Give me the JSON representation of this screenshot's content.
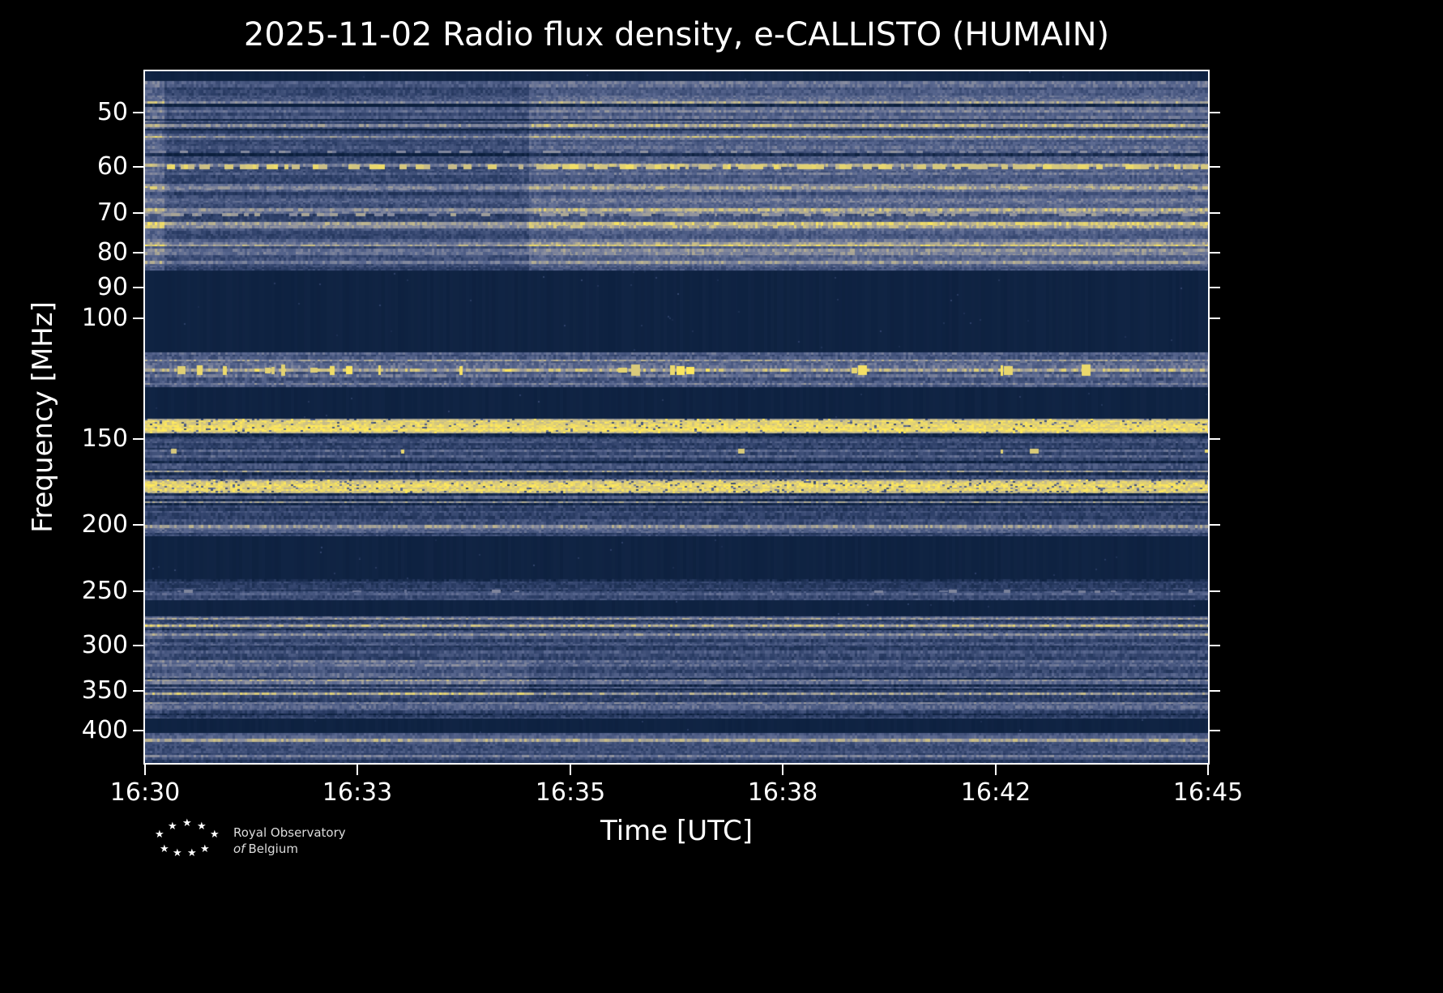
{
  "title": "2025-11-02 Radio flux density, e-CALLISTO (HUMAIN)",
  "axes": {
    "xlabel": "Time [UTC]",
    "ylabel": "Frequency [MHz]",
    "x_tick_labels": [
      "16:30",
      "16:33",
      "16:35",
      "16:38",
      "16:42",
      "16:45"
    ],
    "y_tick_labels": [
      "50",
      "60",
      "70",
      "80",
      "90",
      "100",
      "150",
      "200",
      "250",
      "300",
      "350",
      "400"
    ]
  },
  "footer": {
    "logo_icon": "rob-star-logo",
    "org_line1": "Royal Observatory",
    "org_line2_italic": "of",
    "org_line2_rest": "Belgium"
  },
  "chart_data": {
    "type": "heatmap",
    "title": "2025-11-02 Radio flux density, e-CALLISTO (HUMAIN)",
    "date": "2025-11-02",
    "instrument": "e-CALLISTO",
    "station": "HUMAIN",
    "xlabel": "Time [UTC]",
    "ylabel": "Frequency [MHz]",
    "x_start_utc": "16:30",
    "x_end_utc": "16:45",
    "x_span_minutes": 15,
    "x_ticks": [
      "16:30",
      "16:33",
      "16:35",
      "16:38",
      "16:42",
      "16:45"
    ],
    "y_ticks_mhz": [
      50,
      60,
      70,
      80,
      90,
      100,
      150,
      200,
      250,
      300,
      350,
      400
    ],
    "freq_min_mhz": 43.5,
    "freq_max_mhz": 446,
    "y_scale": "log-inverted",
    "background": "#000000",
    "colormap_stops": [
      [
        0,
        "#0b1f3d"
      ],
      [
        0.3,
        "#2e4069"
      ],
      [
        0.55,
        "#5a6890"
      ],
      [
        0.72,
        "#8b8fa0"
      ],
      [
        0.85,
        "#c2b88d"
      ],
      [
        1,
        "#ffe95c"
      ]
    ],
    "bands": [
      {
        "kind": "dark",
        "f0": 43.5,
        "f1": 45.0,
        "label": "top edge quiet strip"
      },
      {
        "kind": "noise",
        "f0": 45.0,
        "f1": 85,
        "base": 0.46,
        "rowVar": 0.12,
        "jitter": 0.22,
        "darkRowP": 0.1,
        "tanRowP": 0.18,
        "regions": [
          {
            "x0": 0,
            "x1": 0.018,
            "dv": 0.07
          },
          {
            "x0": 0.018,
            "x1": 0.36,
            "dv": -0.09
          },
          {
            "x0": 0.36,
            "x1": 1.01,
            "dv": 0.04
          }
        ],
        "label": "45-85 MHz broadband noise, darker before ~16:35, brighter after"
      },
      {
        "kind": "dark",
        "f0": 85,
        "f1": 112,
        "label": "85-112 MHz quiet band"
      },
      {
        "kind": "noise",
        "f0": 112,
        "f1": 126,
        "base": 0.5,
        "rowVar": 0.14,
        "jitter": 0.26,
        "darkRowP": 0.06,
        "tanRowP": 0.2,
        "label": "112-126 MHz band with bright yellow bursts"
      },
      {
        "kind": "dark",
        "f0": 126,
        "f1": 140,
        "label": "126-140 MHz quiet band"
      },
      {
        "kind": "bright",
        "f0": 140,
        "f1": 147,
        "base": 0.95,
        "jitter": 0.12,
        "gapP": 0.05,
        "label": "~145 MHz continuous bright RFI line"
      },
      {
        "kind": "noise",
        "f0": 147,
        "f1": 172,
        "base": 0.4,
        "rowVar": 0.16,
        "jitter": 0.24,
        "darkRowP": 0.15,
        "tanRowP": 0.12,
        "label": "147-172 MHz noise rows with sparse bright dots"
      },
      {
        "kind": "bright",
        "f0": 172,
        "f1": 180,
        "base": 0.93,
        "jitter": 0.14,
        "gapP": 0.08,
        "label": "~175 MHz continuous bright RFI line"
      },
      {
        "kind": "noise",
        "f0": 180,
        "f1": 208,
        "base": 0.38,
        "rowVar": 0.18,
        "jitter": 0.24,
        "darkRowP": 0.2,
        "tanRowP": 0.08,
        "label": "180-208 MHz mixed noise rows"
      },
      {
        "kind": "dark",
        "f0": 208,
        "f1": 240,
        "label": "208-240 MHz quiet band"
      },
      {
        "kind": "noise",
        "f0": 240,
        "f1": 258,
        "base": 0.36,
        "rowVar": 0.16,
        "jitter": 0.22,
        "darkRowP": 0.2,
        "tanRowP": 0.06,
        "label": "~250 MHz gray noise rows"
      },
      {
        "kind": "dark",
        "f0": 258,
        "f1": 272,
        "label": "258-272 MHz quiet band"
      },
      {
        "kind": "noise",
        "f0": 272,
        "f1": 384,
        "base": 0.41,
        "rowVar": 0.16,
        "jitter": 0.24,
        "darkRowP": 0.16,
        "tanRowP": 0.1,
        "regions": [
          {
            "x0": 0,
            "x1": 0.015,
            "dv": 0.07
          },
          {
            "x0": 0.015,
            "x1": 0.36,
            "dv": 0.09,
            "fr0": 316,
            "fr1": 360
          }
        ],
        "label": "272-384 MHz noise, lighter 320-355 MHz block before ~16:35"
      },
      {
        "kind": "dark",
        "f0": 384,
        "f1": 403,
        "label": "384-403 MHz quiet band"
      },
      {
        "kind": "noise",
        "f0": 403,
        "f1": 419,
        "base": 0.48,
        "rowVar": 0.12,
        "jitter": 0.2,
        "darkRowP": 0.05,
        "tanRowP": 0.15,
        "label": "~410 MHz gray noise row"
      },
      {
        "kind": "noise",
        "f0": 419,
        "f1": 446,
        "base": 0.3,
        "rowVar": 0.14,
        "jitter": 0.22,
        "darkRowP": 0.25,
        "tanRowP": 0.03,
        "label": "bottom dim speckled noise"
      }
    ],
    "features": [
      {
        "kind": "dashline",
        "f": 60,
        "h": 6,
        "p": 0.62,
        "v": 0.97,
        "label": "60 MHz intermittent bright yellow line"
      },
      {
        "kind": "dashline",
        "f": 57,
        "h": 3,
        "p": 0.3,
        "v": 0.74,
        "label": "faint line"
      },
      {
        "kind": "dashline",
        "f": 64.5,
        "h": 3,
        "p": 0.3,
        "v": 0.75,
        "label": "faint line"
      },
      {
        "kind": "dashline",
        "f": 70.5,
        "h": 4,
        "p": 0.4,
        "v": 0.8,
        "label": "faint line"
      },
      {
        "kind": "dashline",
        "f": 73.5,
        "h": 3,
        "p": 0.35,
        "v": 0.78,
        "label": "faint line"
      },
      {
        "kind": "dashline",
        "f": 80,
        "h": 3,
        "p": 0.28,
        "v": 0.72,
        "label": "faint line"
      },
      {
        "kind": "specks",
        "f": 119,
        "h": 14,
        "p": 0.1,
        "v": 1.0,
        "label": "112-126 MHz bright bursts"
      },
      {
        "kind": "specks",
        "f": 156,
        "h": 6,
        "p": 0.012,
        "v": 0.95,
        "label": "sparse bright dots"
      },
      {
        "kind": "specks",
        "f": 250,
        "h": 4,
        "p": 0.04,
        "v": 0.68,
        "label": "sparse gray dots"
      }
    ]
  }
}
